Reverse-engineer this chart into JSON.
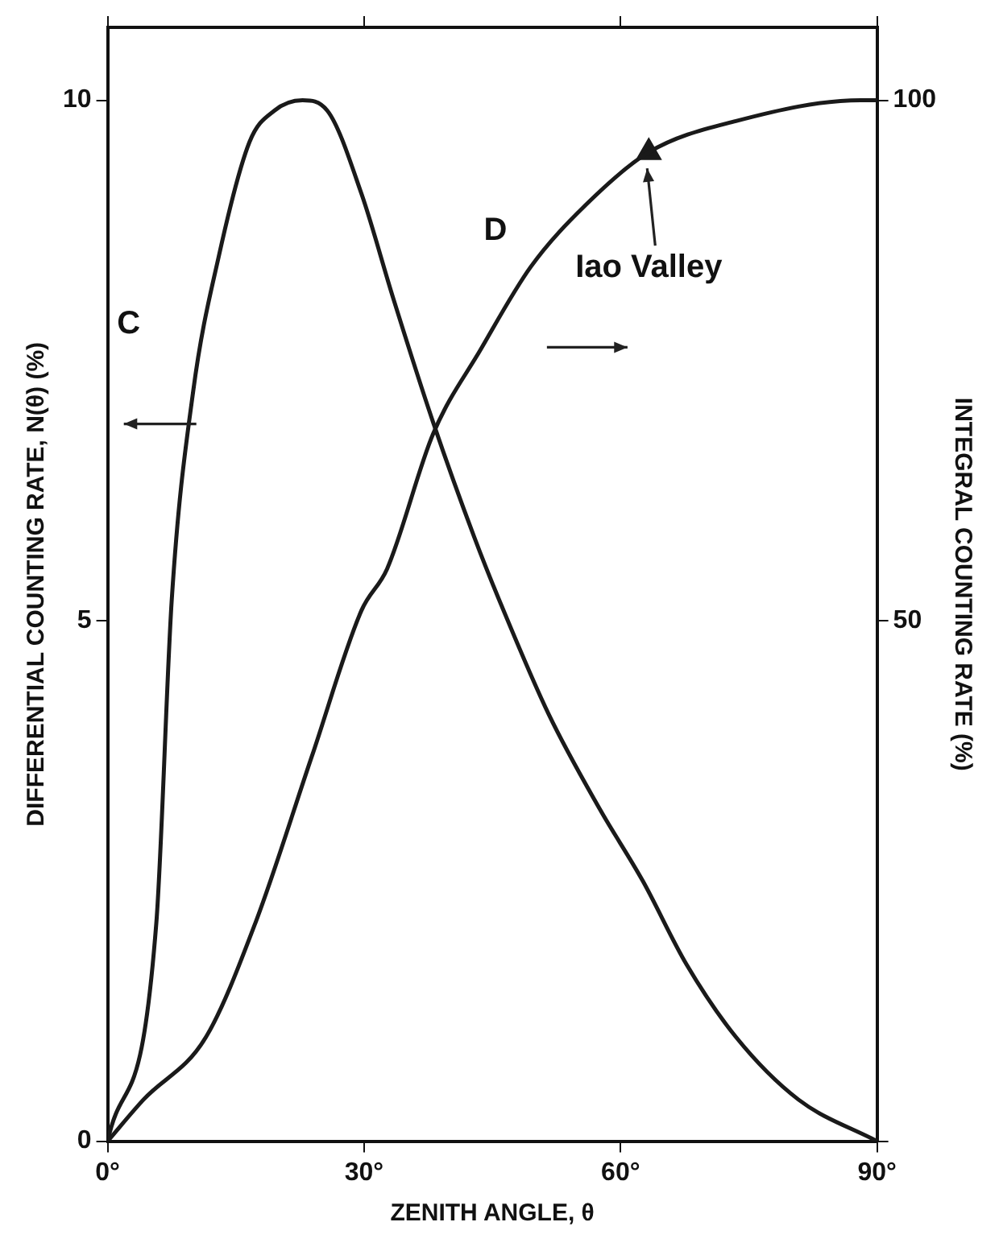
{
  "chart_data": {
    "type": "line",
    "xlabel": "ZENITH ANGLE, θ",
    "ylabel": "DIFFERENTIAL COUNTING RATE, N(θ) (%)",
    "y2label": "INTEGRAL COUNTING RATE (%)",
    "xlim": [
      0,
      90
    ],
    "xticks": [
      {
        "value": 0,
        "label": "0°"
      },
      {
        "value": 30,
        "label": "30°"
      },
      {
        "value": 60,
        "label": "60°"
      },
      {
        "value": 90,
        "label": "90°"
      }
    ],
    "ylim": [
      0,
      10.7
    ],
    "yticks": [
      0,
      5,
      10
    ],
    "y2lim": [
      0,
      107
    ],
    "y2ticks": [
      {
        "value": 0,
        "label": null
      },
      50,
      100
    ],
    "grid": false,
    "legend": false,
    "marker": "none",
    "line_style": "solid",
    "series": [
      {
        "name": "C",
        "color": "#1a1a1a",
        "x": [
          0,
          5.7,
          7.5,
          10,
          13,
          16.6,
          19.5,
          22.8,
          25.7,
          29.7,
          33.4,
          38.1,
          42.9,
          45.8,
          51.6,
          57.5,
          62.6,
          67.7,
          73.5,
          80.8,
          90
        ],
        "values": [
          0,
          2.1,
          5.2,
          7.2,
          8.5,
          9.6,
          9.9,
          10,
          9.9,
          9.1,
          8.1,
          6.9,
          5.8,
          5.2,
          4.1,
          3.2,
          2.5,
          1.7,
          1,
          0.4,
          0
        ]
      },
      {
        "name": "D",
        "color": "#1a1a1a",
        "axis": "y2",
        "x": [
          0,
          4.2,
          11.5,
          17.3,
          23.9,
          29.7,
          32.7,
          38.1,
          43.6,
          49.5,
          56,
          63.3,
          73.5,
          88.1,
          90
        ],
        "values": [
          0,
          4,
          10,
          21,
          37,
          51,
          55,
          68,
          76,
          84,
          90,
          95,
          98,
          100,
          100
        ]
      },
      {
        "name": "Iao Valley",
        "type": "scatter",
        "marker": "triangle",
        "color": "#1a1a1a",
        "axis": "y2",
        "x": [
          63.3
        ],
        "values": [
          95
        ]
      }
    ]
  }
}
